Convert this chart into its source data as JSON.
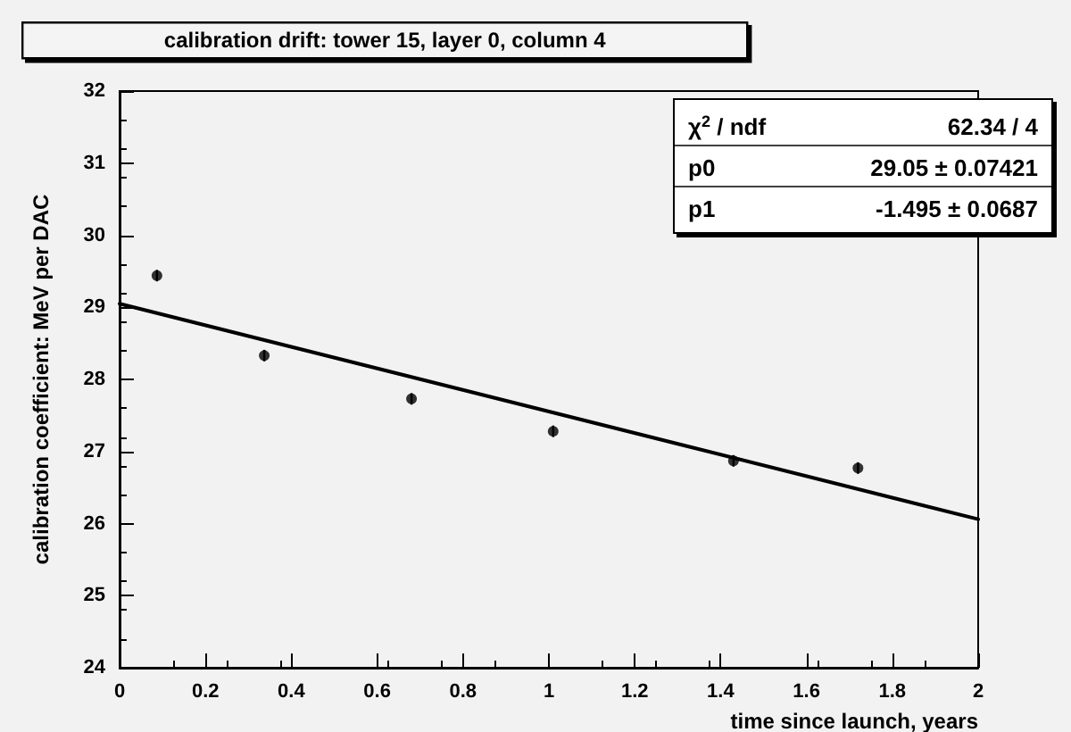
{
  "chart_data": {
    "type": "scatter",
    "title": "calibration drift: tower 15, layer 0, column 4",
    "xlabel": "time since launch, years",
    "ylabel": "calibration coefficient: MeV per DAC",
    "series": [
      {
        "color": "#000000",
        "marker": "circle",
        "x": [
          0.087,
          0.337,
          0.68,
          1.01,
          1.43,
          1.72
        ],
        "values": [
          29.44,
          28.33,
          27.73,
          27.28,
          26.87,
          26.77
        ],
        "errors": [
          0.08,
          0.08,
          0.08,
          0.08,
          0.08,
          0.08
        ]
      },
      {
        "type": "line",
        "marker": "none",
        "color": "#000000",
        "x": [
          0,
          2
        ],
        "values": [
          29.05,
          26.06
        ]
      }
    ],
    "annotations": [
      "χ$^{2}$ / ndf",
      "62.34 / 4",
      "p0",
      "29.05 ± 0.07421",
      "p1",
      "-1.495 ± 0.0687"
    ],
    "xlim": [
      0,
      2
    ],
    "xticks": [
      0,
      0.2,
      0.4,
      0.6,
      0.8,
      1,
      1.2,
      1.4,
      1.6,
      1.8,
      2
    ],
    "ylim": [
      24,
      32
    ],
    "yticks": [
      24,
      25,
      26,
      27,
      28,
      29,
      30,
      31,
      32
    ],
    "grid": false,
    "line_style": "solid"
  }
}
